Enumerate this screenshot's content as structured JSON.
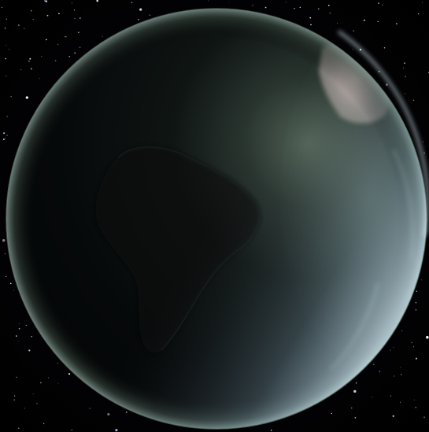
{
  "scene": {
    "subject": "planet",
    "colors": {
      "space": "#000000",
      "planet_night": "#05080a",
      "planet_limb": "#4a5a4c",
      "atmosphere_glow": "#9fc4d8",
      "sunlit_land": "#d9c7c0",
      "terminator_haze": "#6d7f70",
      "continent_shadow": "#0d120f"
    },
    "stars": {
      "count": 140,
      "color": "#ffffff",
      "accent_color": "#c9b8ff"
    }
  }
}
